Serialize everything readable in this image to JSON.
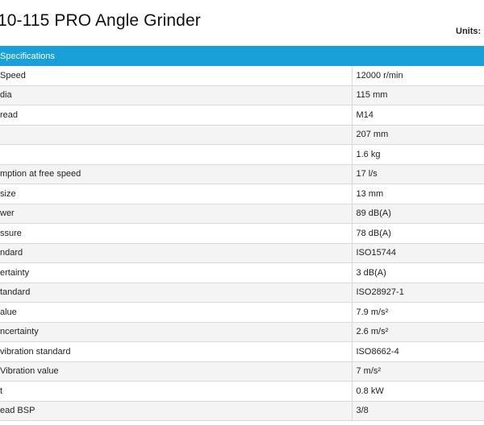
{
  "product": {
    "title": "10-115 PRO Angle Grinder"
  },
  "units": {
    "label": "Units:"
  },
  "specs": {
    "header": "Specifications",
    "rows": [
      {
        "name": "Speed",
        "value": "12000 r/min"
      },
      {
        "name": " dia",
        "value": "115 mm"
      },
      {
        "name": "read",
        "value": "M14"
      },
      {
        "name": "",
        "value": "207 mm"
      },
      {
        "name": "",
        "value": "1.6 kg"
      },
      {
        "name": "mption at free speed",
        "value": "17 l/s"
      },
      {
        "name": "size",
        "value": "13 mm"
      },
      {
        "name": "wer",
        "value": "89 dB(A)"
      },
      {
        "name": "ssure",
        "value": "78 dB(A)"
      },
      {
        "name": "ndard",
        "value": "ISO15744"
      },
      {
        "name": "ertainty",
        "value": "3 dB(A)"
      },
      {
        "name": "tandard",
        "value": "ISO28927-1"
      },
      {
        "name": "alue",
        "value": "7.9 m/s²"
      },
      {
        "name": "ncertainty",
        "value": "2.6 m/s²"
      },
      {
        "name": "vibration standard",
        "value": "ISO8662-4"
      },
      {
        "name": "Vibration value",
        "value": "7 m/s²"
      },
      {
        "name": "t",
        "value": "0.8 kW"
      },
      {
        "name": "ead BSP",
        "value": "3/8"
      }
    ]
  }
}
